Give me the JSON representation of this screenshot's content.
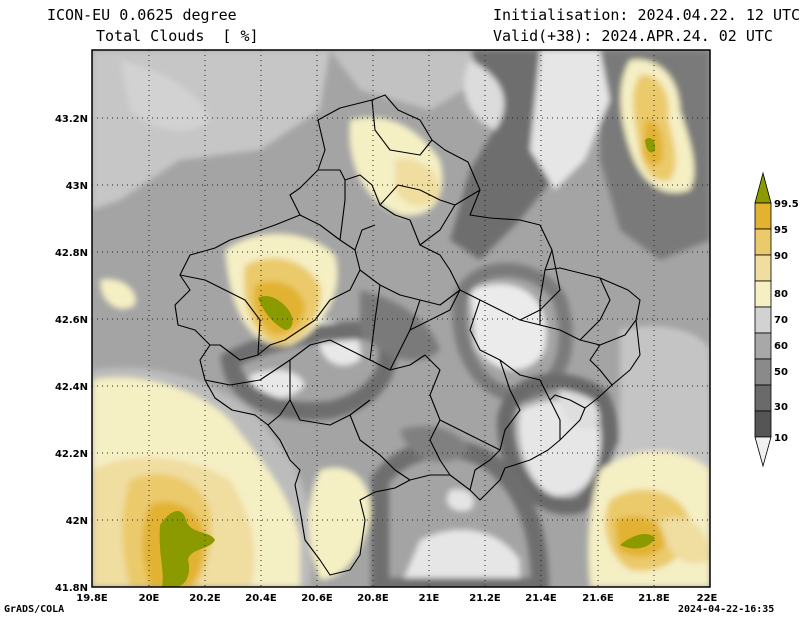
{
  "header": {
    "model": "ICON-EU 0.0625 degree",
    "field": "Total Clouds  [ %]",
    "init": "Initialisation: 2024.04.22. 12 UTC",
    "valid": "Valid(+38): 2024.APR.24. 02 UTC"
  },
  "footer": {
    "left": "GrADS/COLA",
    "right": "2024-04-22-16:35"
  },
  "map": {
    "lat_labels": [
      "43.2N",
      "43N",
      "42.8N",
      "42.6N",
      "42.4N",
      "42.2N",
      "42N",
      "41.8N"
    ],
    "lon_labels": [
      "19.8E",
      "20E",
      "20.2E",
      "20.4E",
      "20.6E",
      "20.8E",
      "21E",
      "21.2E",
      "21.4E",
      "21.6E",
      "21.8E",
      "22E"
    ]
  },
  "legend": {
    "labels": [
      "99.5",
      "95",
      "90",
      "80",
      "70",
      "60",
      "50",
      "30",
      "10"
    ],
    "colors": [
      "#8a9a00",
      "#e2b230",
      "#ebca6c",
      "#f0dda0",
      "#f5efc4",
      "#d2d2d2",
      "#a8a8a8",
      "#8a8a8a",
      "#6a6a6a",
      "#555555",
      "#f0f0f0"
    ]
  },
  "palette": {
    "clear": "#e6e6e6",
    "low": "#6e6e6e",
    "mid": "#a0a0a0",
    "high": "#c4c4c4",
    "pale": "#f5efc4",
    "tan": "#ebca6c",
    "gold": "#e2b230",
    "olive": "#8a9a00"
  }
}
